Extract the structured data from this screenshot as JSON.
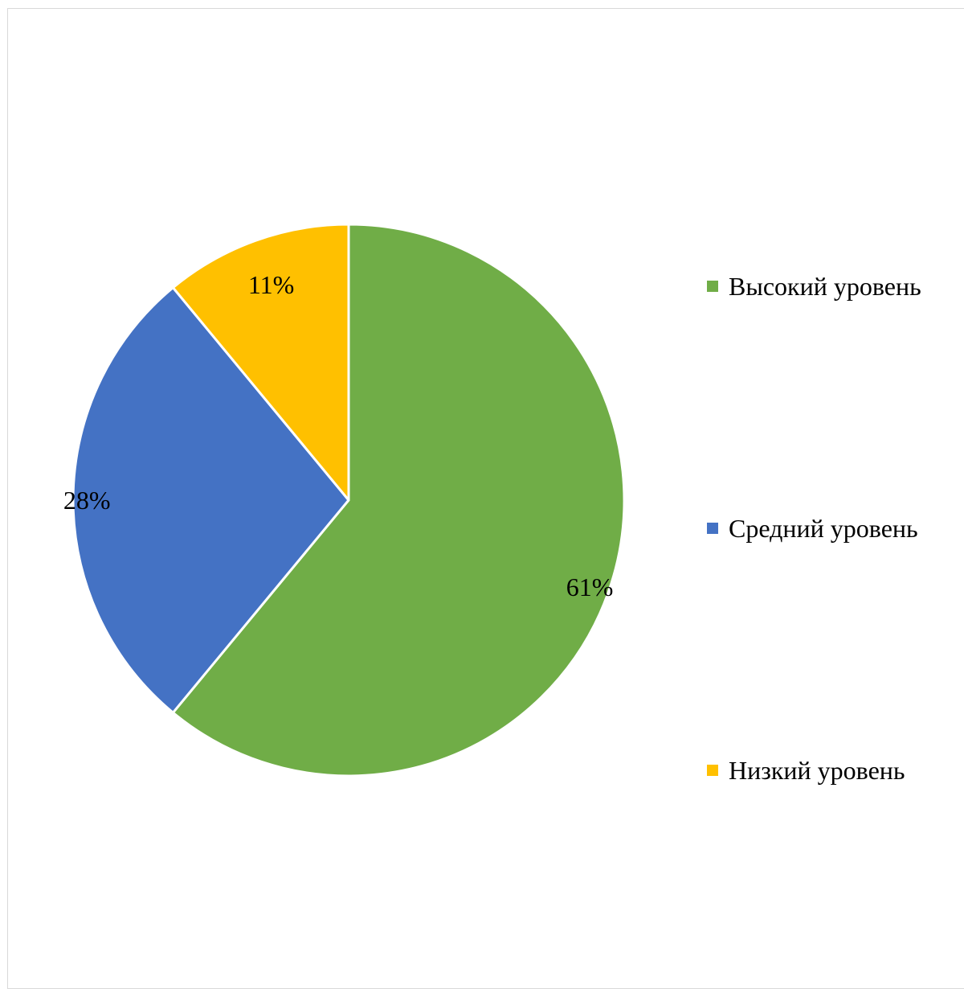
{
  "chart_data": {
    "type": "pie",
    "categories": [
      "Высокий уровень",
      "Средний уровень",
      "Низкий уровень"
    ],
    "values": [
      61,
      28,
      11
    ],
    "data_labels": [
      "61%",
      "28%",
      "11%"
    ],
    "colors": [
      "#70AD47",
      "#4472C4",
      "#FFC000"
    ],
    "start_angle_deg": 0,
    "direction": "clockwise",
    "legend_position": "right",
    "title": ""
  }
}
